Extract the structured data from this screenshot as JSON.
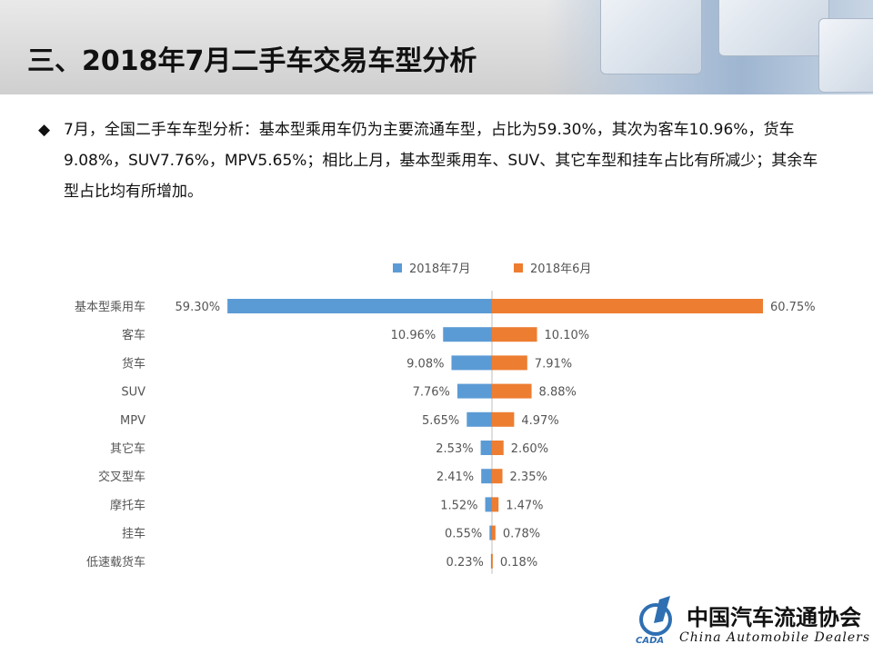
{
  "slide": {
    "title": "三、2018年7月二手车交易车型分析",
    "bullet_symbol": "◆",
    "bullet_text": "7月，全国二手车车型分析：基本型乘用车仍为主要流通车型，占比为59.30%，其次为客车10.96%，货车9.08%，SUV7.76%，MPV5.65%；相比上月，基本型乘用车、SUV、其它车型和挂车占比有所减少；其余车型占比均有所增加。"
  },
  "chart_data": {
    "type": "bar",
    "orientation": "horizontal-diverging",
    "categories": [
      "基本型乘用车",
      "客车",
      "货车",
      "SUV",
      "MPV",
      "其它车",
      "交叉型车",
      "摩托车",
      "挂车",
      "低速载货车"
    ],
    "series": [
      {
        "name": "2018年7月",
        "color": "#5b9bd5",
        "values": [
          59.3,
          10.96,
          9.08,
          7.76,
          5.65,
          2.53,
          2.41,
          1.52,
          0.55,
          0.23
        ],
        "labels": [
          "59.30%",
          "10.96%",
          "9.08%",
          "7.76%",
          "5.65%",
          "2.53%",
          "2.41%",
          "1.52%",
          "0.55%",
          "0.23%"
        ]
      },
      {
        "name": "2018年6月",
        "color": "#ed7d31",
        "values": [
          60.75,
          10.1,
          7.91,
          8.88,
          4.97,
          2.6,
          2.35,
          1.47,
          0.78,
          0.18
        ],
        "labels": [
          "60.75%",
          "10.10%",
          "7.91%",
          "8.88%",
          "4.97%",
          "2.60%",
          "2.35%",
          "1.47%",
          "0.78%",
          "0.18%"
        ]
      }
    ],
    "legend_position": "top-center",
    "grid": false
  },
  "logo": {
    "name_cn": "中国汽车流通协会",
    "name_en": "China  Automobile Dealers",
    "abbr": "CADA"
  }
}
